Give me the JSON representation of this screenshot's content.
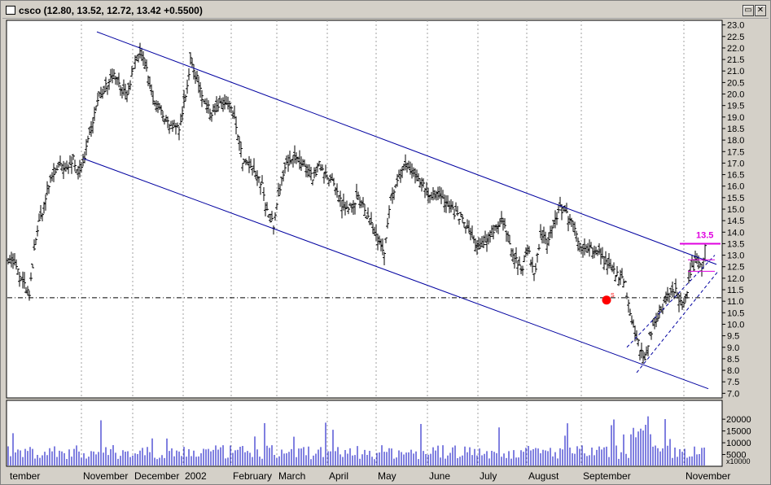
{
  "window": {
    "title": "csco (12.80, 13.52, 12.72, 13.42 +0.5500)",
    "restore_glyph": "▭",
    "close_glyph": "✕"
  },
  "colors": {
    "background": "#ffffff",
    "frame": "#d4d0c8",
    "price_bars": "#000000",
    "trend_lines": "#0000a0",
    "support_line": "#000000",
    "target_marker": "#e000e0",
    "signal_marker": "#ff0000",
    "volume_bars": "#0000c0"
  },
  "chart_data": [
    {
      "type": "ohlc",
      "series_name": "csco",
      "last_bar": {
        "open": 12.8,
        "high": 13.52,
        "low": 12.72,
        "close": 13.42,
        "change": 0.55
      },
      "y_axis": {
        "range": [
          6.8,
          23.2
        ],
        "ticks": [
          7.0,
          7.5,
          8.0,
          8.5,
          9.0,
          9.5,
          10.0,
          10.5,
          11.0,
          11.5,
          12.0,
          12.5,
          13.0,
          13.5,
          14.0,
          14.5,
          15.0,
          15.5,
          16.0,
          16.5,
          17.0,
          17.5,
          18.0,
          18.5,
          19.0,
          19.5,
          20.0,
          20.5,
          21.0,
          21.5,
          22.0,
          22.5,
          23.0
        ]
      },
      "x_axis": {
        "labels": [
          "tember",
          "November",
          "December",
          "2002",
          "February",
          "March",
          "April",
          "May",
          "June",
          "July",
          "August",
          "September",
          "November"
        ],
        "label_positions_index": [
          0,
          90,
          153,
          215,
          274,
          330,
          392,
          452,
          515,
          577,
          637,
          704,
          830
        ]
      },
      "key_points": [
        [
          0,
          13.0
        ],
        [
          8,
          12.6
        ],
        [
          18,
          11.8
        ],
        [
          26,
          11.2
        ],
        [
          34,
          13.8
        ],
        [
          44,
          15.2
        ],
        [
          52,
          16.3
        ],
        [
          62,
          16.9
        ],
        [
          72,
          16.6
        ],
        [
          80,
          17.2
        ],
        [
          88,
          16.5
        ],
        [
          96,
          17.6
        ],
        [
          104,
          18.9
        ],
        [
          112,
          19.9
        ],
        [
          120,
          20.4
        ],
        [
          130,
          21.0
        ],
        [
          138,
          20.3
        ],
        [
          146,
          19.8
        ],
        [
          154,
          21.2
        ],
        [
          162,
          21.8
        ],
        [
          170,
          21.0
        ],
        [
          178,
          19.7
        ],
        [
          186,
          19.3
        ],
        [
          194,
          18.9
        ],
        [
          202,
          18.4
        ],
        [
          210,
          18.6
        ],
        [
          218,
          20.0
        ],
        [
          224,
          21.4
        ],
        [
          232,
          20.7
        ],
        [
          240,
          19.8
        ],
        [
          248,
          19.2
        ],
        [
          256,
          19.4
        ],
        [
          264,
          19.6
        ],
        [
          272,
          19.5
        ],
        [
          280,
          18.6
        ],
        [
          288,
          17.1
        ],
        [
          296,
          16.8
        ],
        [
          304,
          16.5
        ],
        [
          312,
          16.0
        ],
        [
          320,
          14.7
        ],
        [
          326,
          14.3
        ],
        [
          334,
          15.9
        ],
        [
          342,
          17.0
        ],
        [
          350,
          17.3
        ],
        [
          358,
          16.9
        ],
        [
          366,
          16.7
        ],
        [
          374,
          16.4
        ],
        [
          382,
          16.9
        ],
        [
          390,
          16.6
        ],
        [
          398,
          16.2
        ],
        [
          406,
          15.5
        ],
        [
          414,
          15.0
        ],
        [
          422,
          15.3
        ],
        [
          430,
          15.5
        ],
        [
          438,
          14.9
        ],
        [
          446,
          14.3
        ],
        [
          454,
          13.6
        ],
        [
          462,
          13.0
        ],
        [
          470,
          15.5
        ],
        [
          478,
          16.2
        ],
        [
          486,
          16.9
        ],
        [
          494,
          16.7
        ],
        [
          502,
          16.4
        ],
        [
          510,
          16.0
        ],
        [
          518,
          15.6
        ],
        [
          526,
          15.8
        ],
        [
          534,
          15.4
        ],
        [
          542,
          15.0
        ],
        [
          550,
          14.8
        ],
        [
          558,
          14.5
        ],
        [
          566,
          14.0
        ],
        [
          574,
          13.4
        ],
        [
          582,
          13.2
        ],
        [
          590,
          13.9
        ],
        [
          598,
          14.2
        ],
        [
          606,
          14.6
        ],
        [
          614,
          13.7
        ],
        [
          622,
          13.0
        ],
        [
          630,
          12.3
        ],
        [
          638,
          13.3
        ],
        [
          646,
          12.1
        ],
        [
          654,
          13.8
        ],
        [
          662,
          13.6
        ],
        [
          670,
          14.4
        ],
        [
          678,
          15.0
        ],
        [
          686,
          14.9
        ],
        [
          694,
          14.2
        ],
        [
          702,
          13.5
        ],
        [
          710,
          13.4
        ],
        [
          718,
          13.2
        ],
        [
          726,
          13.1
        ],
        [
          734,
          12.6
        ],
        [
          742,
          12.4
        ],
        [
          750,
          12.1
        ],
        [
          758,
          11.7
        ],
        [
          764,
          10.6
        ],
        [
          770,
          9.6
        ],
        [
          776,
          9.0
        ],
        [
          782,
          8.5
        ],
        [
          788,
          9.5
        ],
        [
          794,
          10.1
        ],
        [
          800,
          10.6
        ],
        [
          808,
          11.0
        ],
        [
          816,
          11.6
        ],
        [
          822,
          11.3
        ],
        [
          828,
          10.8
        ],
        [
          834,
          11.5
        ],
        [
          840,
          12.4
        ],
        [
          846,
          12.8
        ],
        [
          852,
          12.6
        ],
        [
          856,
          13.42
        ]
      ],
      "trend_channel": {
        "upper": [
          [
            109,
            22.7
          ],
          [
            870,
            12.6
          ]
        ],
        "lower": [
          [
            92,
            17.2
          ],
          [
            860,
            7.2
          ]
        ]
      },
      "rally_channel": {
        "upper": [
          [
            760,
            9.0
          ],
          [
            868,
            13.0
          ]
        ],
        "lower": [
          [
            772,
            7.9
          ],
          [
            872,
            12.3
          ]
        ]
      },
      "support_level": 11.15,
      "target": {
        "value": 13.5,
        "label": "13.5",
        "upper_line": 13.5,
        "mid_line": 12.8,
        "lower_line": 12.3
      },
      "signal_marker": {
        "index": 735,
        "value": 11.05,
        "label": "S"
      }
    },
    {
      "type": "bar",
      "series_name": "volume",
      "y_axis": {
        "ticks": [
          5000,
          10000,
          15000,
          20000
        ],
        "tick_labels": [
          "5000",
          "10000",
          "15000",
          "20000"
        ],
        "range": [
          0,
          28000
        ],
        "multiplier_label": "x10000"
      }
    }
  ]
}
